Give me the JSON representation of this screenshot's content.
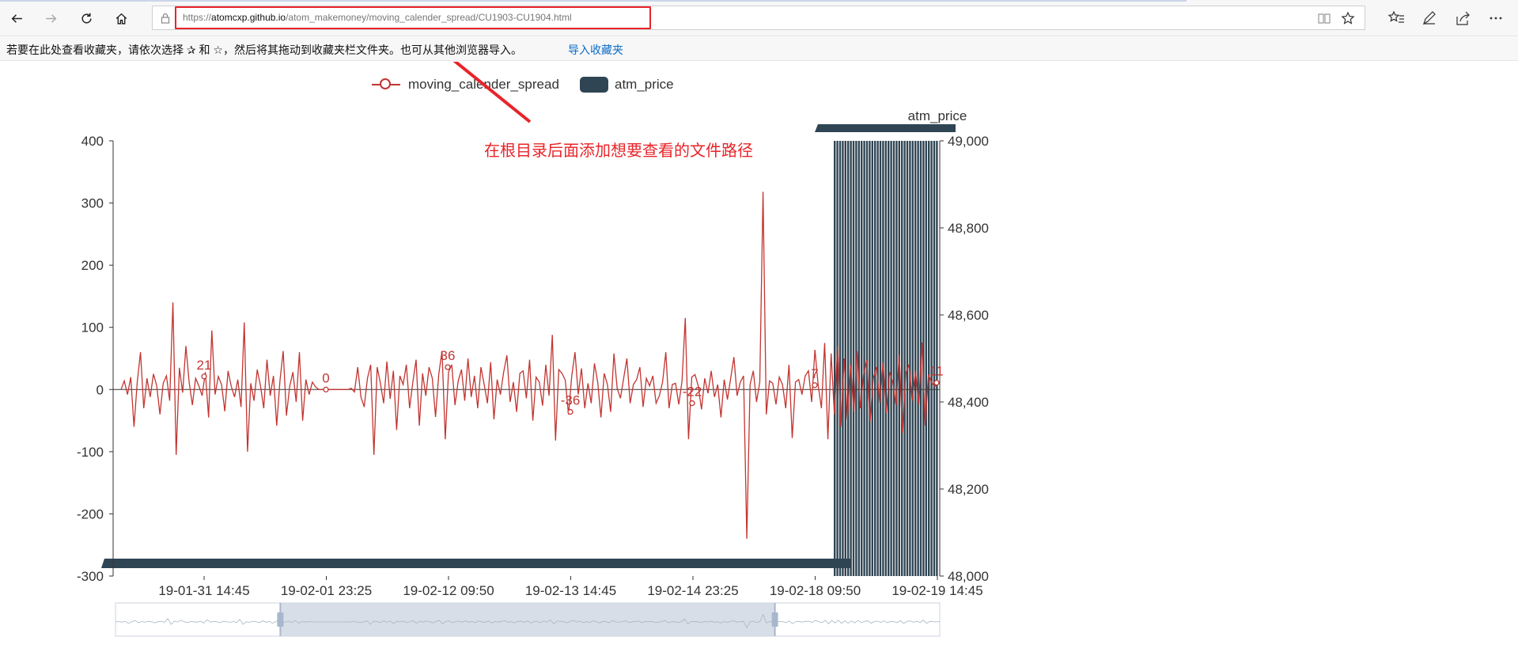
{
  "browser": {
    "url_scheme": "https://",
    "url_host": "atomcxp.github.io",
    "url_path": "/atom_makemoney/moving_calender_spread/CU1903-CU1904.html",
    "favorites_hint": "若要在此处查看收藏夹，请依次选择 ✰ 和 ☆，然后将其拖动到收藏夹栏文件夹。也可从其他浏览器导入。",
    "favorites_import": "导入收藏夹"
  },
  "annotation": {
    "text": "在根目录后面添加想要查看的文件路径",
    "color": "#e8242a"
  },
  "chart_data": {
    "type": "line",
    "legend": {
      "position": "top-center",
      "items": [
        {
          "name": "moving_calender_spread",
          "symbol": "line-circle",
          "color": "#c23531"
        },
        {
          "name": "atm_price",
          "symbol": "bar",
          "color": "#2f4554"
        }
      ]
    },
    "y_left": {
      "ticks": [
        "400",
        "300",
        "200",
        "100",
        "0",
        "-100",
        "-200",
        "-300"
      ],
      "min": -300,
      "max": 400
    },
    "y_right": {
      "name": "atm_price",
      "ticks": [
        "49,000",
        "48,800",
        "48,600",
        "48,400",
        "48,200",
        "48,000"
      ],
      "min": 48000,
      "max": 49000
    },
    "x_tick_labels": [
      "19-01-31 14:45",
      "19-02-01 23:25",
      "19-02-12 09:50",
      "19-02-13 14:45",
      "19-02-14 23:25",
      "19-02-18 09:50",
      "19-02-19 14:45"
    ],
    "series": [
      {
        "name": "moving_calender_spread",
        "color": "#c23531",
        "labeled_points": [
          {
            "label": "21",
            "value": 21
          },
          {
            "label": "0",
            "value": 0
          },
          {
            "label": "36",
            "value": 36
          },
          {
            "label": "-36",
            "value": -36
          },
          {
            "label": "-22",
            "value": -22
          },
          {
            "label": "7",
            "value": 7
          },
          {
            "label": "11",
            "value": 11
          }
        ],
        "values": [
          0,
          14,
          -8,
          20,
          -60,
          12,
          60,
          -30,
          18,
          -12,
          25,
          6,
          -40,
          10,
          22,
          -18,
          140,
          -105,
          35,
          -5,
          70,
          12,
          -25,
          18,
          6,
          -10,
          28,
          -45,
          95,
          -8,
          21,
          8,
          -35,
          30,
          5,
          -12,
          16,
          -28,
          108,
          -100,
          10,
          -18,
          32,
          6,
          -30,
          48,
          -10,
          22,
          -58,
          14,
          62,
          -42,
          5,
          28,
          -20,
          60,
          -50,
          16,
          -8,
          12,
          4,
          0,
          0,
          0,
          0,
          0,
          0,
          0,
          0,
          0,
          0,
          2,
          -4,
          36,
          -12,
          -28,
          18,
          40,
          -105,
          36,
          10,
          -22,
          45,
          -15,
          30,
          -65,
          22,
          8,
          40,
          -30,
          12,
          48,
          -58,
          26,
          -10,
          36,
          18,
          -44,
          25,
          62,
          -80,
          28,
          40,
          -25,
          14,
          32,
          -18,
          50,
          -12,
          22,
          -30,
          36,
          8,
          -22,
          44,
          -48,
          16,
          -8,
          28,
          55,
          -20,
          12,
          -36,
          26,
          30,
          -14,
          48,
          -50,
          20,
          12,
          -26,
          40,
          -10,
          88,
          -82,
          32,
          26,
          15,
          -40,
          22,
          60,
          -8,
          34,
          -30,
          10,
          -22,
          42,
          12,
          -45,
          26,
          8,
          -36,
          58,
          2,
          -14,
          18,
          50,
          -22,
          8,
          16,
          36,
          -28,
          18,
          6,
          22,
          -22,
          -10,
          12,
          60,
          -30,
          8,
          10,
          -24,
          14,
          115,
          -80,
          20,
          24,
          6,
          -32,
          18,
          -6,
          30,
          -12,
          8,
          -45,
          16,
          -16,
          18,
          52,
          -10,
          12,
          22,
          -240,
          8,
          30,
          -20,
          12,
          318,
          -40,
          14,
          10,
          -24,
          20,
          8,
          -30,
          40,
          -78,
          12,
          16,
          -8,
          22,
          30,
          -20,
          64,
          7,
          -30,
          75,
          -80,
          58,
          -40,
          70,
          -60,
          50,
          -48,
          40,
          -36,
          62,
          -30,
          24,
          48,
          -52,
          18,
          36,
          -22,
          44,
          -38,
          28,
          12,
          -26,
          56,
          -70,
          26,
          40,
          -18,
          30,
          -24,
          76,
          -58,
          24,
          11,
          5,
          12
        ]
      },
      {
        "name": "atm_price",
        "color": "#2f4554",
        "bar_value_range": [
          48000,
          49000
        ]
      }
    ],
    "data_zoom": {
      "start_percent": 20,
      "end_percent": 80
    },
    "grid": false
  }
}
